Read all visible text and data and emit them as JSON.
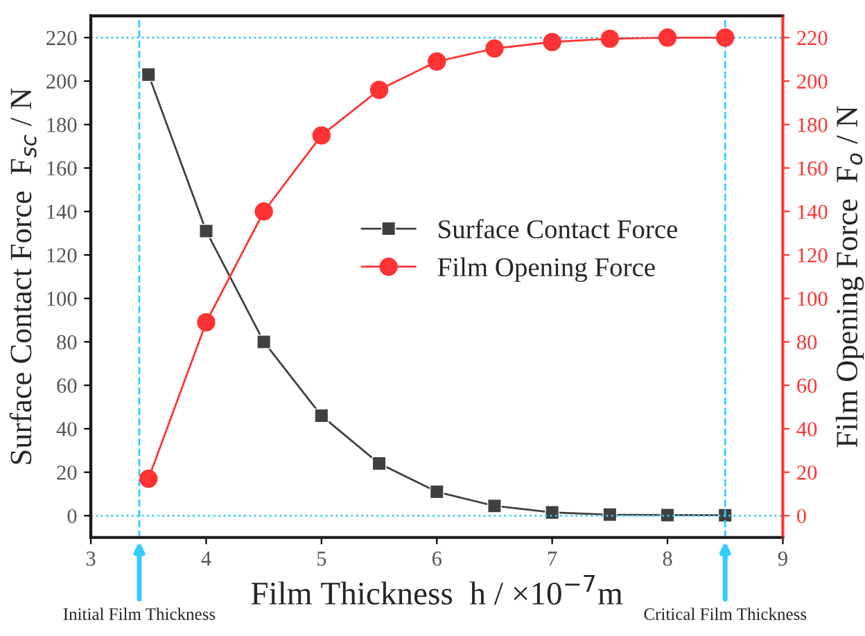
{
  "chart_data": {
    "type": "line",
    "xlabel": "Film Thickness  h / ×10$^{−7}$m",
    "ylabel": "Surface Contact Force  F$_{sc}$ / N",
    "y2label": "Film Opening Force  F$_{o}$ / N",
    "x": [
      3.5,
      4,
      4.5,
      5,
      5.5,
      6,
      6.5,
      7,
      7.5,
      8,
      8.5
    ],
    "series": [
      {
        "name": "Surface Contact Force",
        "color": "#404040",
        "marker": "square",
        "values": [
          203,
          131,
          80,
          46,
          24,
          11,
          4.5,
          1.5,
          0.5,
          0.3,
          0.2
        ]
      },
      {
        "name": "Film Opening Force",
        "color": "#ff3333",
        "marker": "circle",
        "axis": "y2",
        "values": [
          17,
          89,
          140,
          175,
          196,
          209,
          215,
          218,
          219.5,
          220,
          220
        ]
      }
    ],
    "xlim": [
      3,
      9
    ],
    "xticks": [
      3,
      4,
      5,
      6,
      7,
      8,
      9
    ],
    "ylim": [
      -10,
      230
    ],
    "yticks": [
      0,
      20,
      40,
      60,
      80,
      100,
      120,
      140,
      160,
      180,
      200,
      220
    ],
    "y2lim": [
      -10,
      230
    ],
    "y2ticks": [
      0,
      20,
      40,
      60,
      80,
      100,
      120,
      140,
      160,
      180,
      200,
      220
    ],
    "ref_lines": [
      {
        "axis": "x",
        "value": 3.42,
        "label": "Initial Film Thickness",
        "color": "#33ccff",
        "line_style": "dashed"
      },
      {
        "axis": "x",
        "value": 8.5,
        "label": "Critical Film Thickness",
        "color": "#33ccff",
        "line_style": "dashed"
      },
      {
        "axis": "y",
        "value": 220,
        "color": "#33ccff",
        "line_style": "dotted"
      },
      {
        "axis": "y",
        "value": 0,
        "color": "#33ccff",
        "line_style": "dotted"
      }
    ],
    "legend": "center",
    "grid": false,
    "line_style": "solid"
  }
}
